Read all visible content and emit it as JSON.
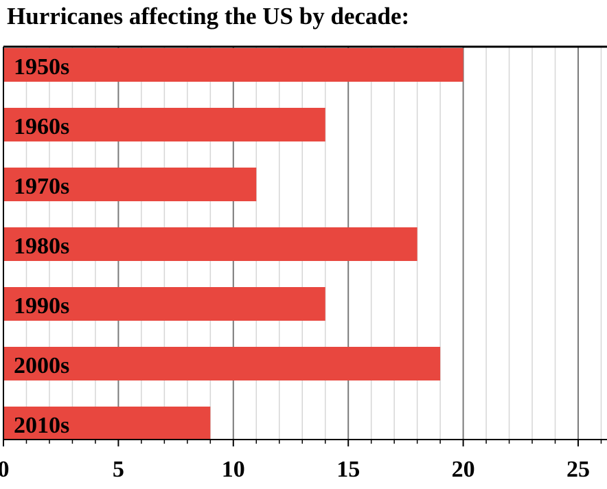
{
  "chart_data": {
    "type": "bar",
    "orientation": "horizontal",
    "title": "Hurricanes affecting the US by decade:",
    "categories": [
      "1950s",
      "1960s",
      "1970s",
      "1980s",
      "1990s",
      "2000s",
      "2010s"
    ],
    "values": [
      20,
      14,
      11,
      18,
      14,
      19,
      9
    ],
    "xlabel": "",
    "ylabel": "",
    "xlim": [
      0,
      25
    ],
    "major_ticks": [
      0,
      5,
      10,
      15,
      20,
      25
    ],
    "minor_tick_step": 1,
    "grid": true,
    "legend": "none",
    "bar_color": "#e8473f",
    "major_grid_color": "#7a7a7a",
    "minor_grid_color": "#d6d6d6"
  }
}
